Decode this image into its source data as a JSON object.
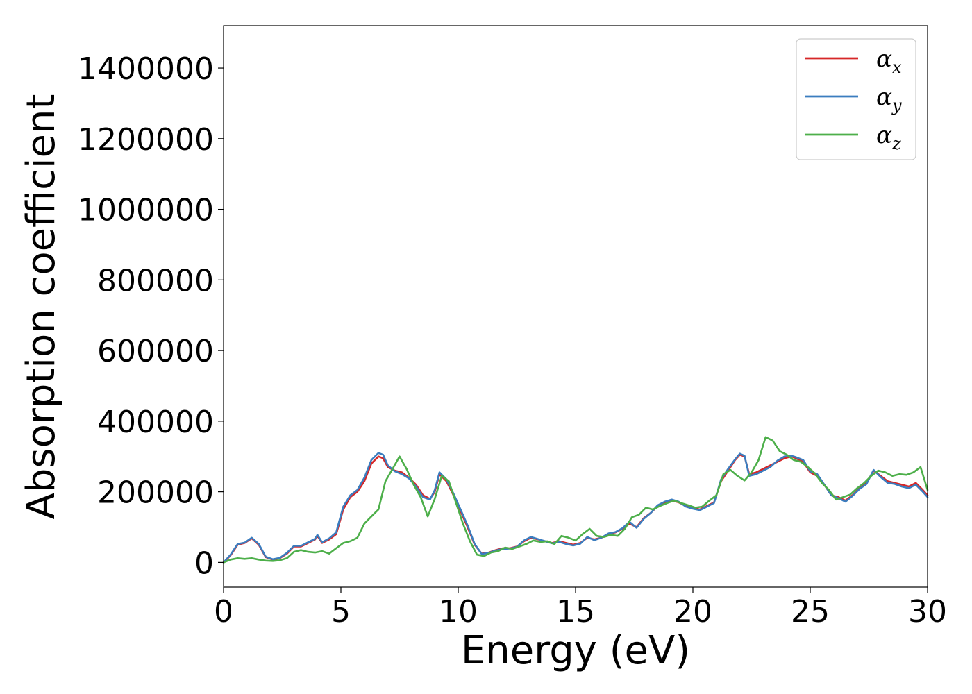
{
  "chart_data": {
    "type": "line",
    "title": "",
    "xlabel": "Energy (eV)",
    "ylabel": "Absorption coefficient",
    "xlim": [
      0,
      30
    ],
    "ylim": [
      -70000,
      1520000
    ],
    "xticks": [
      0,
      5,
      10,
      15,
      20,
      25,
      30
    ],
    "yticks": [
      0,
      200000,
      400000,
      600000,
      800000,
      1000000,
      1200000,
      1400000
    ],
    "xtick_labels": [
      "0",
      "5",
      "10",
      "15",
      "20",
      "25",
      "30"
    ],
    "ytick_labels": [
      "0",
      "200000",
      "400000",
      "600000",
      "800000",
      "1000000",
      "1200000",
      "1400000"
    ],
    "grid": false,
    "legend_position": "top-right",
    "series": [
      {
        "name": "α",
        "name_sub": "x",
        "color": "#d62728",
        "x": [
          0,
          0.3,
          0.6,
          0.9,
          1.2,
          1.5,
          1.8,
          2.1,
          2.4,
          2.7,
          3.0,
          3.3,
          3.6,
          3.9,
          4.0,
          4.2,
          4.5,
          4.8,
          5.1,
          5.4,
          5.7,
          6.0,
          6.3,
          6.6,
          6.8,
          7.0,
          7.3,
          7.6,
          7.9,
          8.2,
          8.5,
          8.8,
          9.0,
          9.2,
          9.5,
          9.8,
          10.1,
          10.4,
          10.7,
          11.0,
          11.3,
          11.6,
          11.9,
          12.2,
          12.5,
          12.8,
          13.1,
          13.4,
          13.7,
          14.0,
          14.3,
          14.6,
          14.9,
          15.2,
          15.5,
          15.8,
          16.1,
          16.4,
          16.7,
          17.0,
          17.3,
          17.6,
          17.9,
          18.2,
          18.5,
          18.8,
          19.1,
          19.4,
          19.7,
          20.0,
          20.3,
          20.6,
          20.9,
          21.2,
          21.5,
          21.8,
          22.0,
          22.2,
          22.4,
          22.7,
          23.0,
          23.3,
          23.6,
          23.9,
          24.2,
          24.4,
          24.7,
          25.0,
          25.3,
          25.6,
          25.9,
          26.2,
          26.5,
          26.8,
          27.1,
          27.4,
          27.7,
          28.0,
          28.3,
          28.6,
          28.9,
          29.2,
          29.5,
          29.8,
          30.0
        ],
        "y": [
          0,
          20000,
          50000,
          55000,
          68000,
          50000,
          15000,
          8000,
          12000,
          25000,
          45000,
          45000,
          55000,
          65000,
          75000,
          55000,
          65000,
          80000,
          150000,
          185000,
          200000,
          230000,
          280000,
          300000,
          295000,
          270000,
          260000,
          255000,
          240000,
          220000,
          190000,
          180000,
          200000,
          250000,
          230000,
          190000,
          145000,
          100000,
          50000,
          25000,
          28000,
          35000,
          40000,
          40000,
          45000,
          60000,
          70000,
          65000,
          60000,
          55000,
          60000,
          55000,
          50000,
          55000,
          70000,
          65000,
          70000,
          80000,
          85000,
          95000,
          110000,
          100000,
          125000,
          140000,
          160000,
          170000,
          175000,
          170000,
          160000,
          155000,
          150000,
          160000,
          170000,
          230000,
          260000,
          290000,
          305000,
          300000,
          250000,
          255000,
          265000,
          275000,
          285000,
          295000,
          300000,
          295000,
          285000,
          255000,
          245000,
          220000,
          190000,
          185000,
          175000,
          190000,
          210000,
          225000,
          260000,
          245000,
          230000,
          225000,
          220000,
          215000,
          225000,
          205000,
          190000
        ]
      },
      {
        "name": "α",
        "name_sub": "y",
        "color": "#3b7dbf",
        "x": [
          0,
          0.3,
          0.6,
          0.9,
          1.2,
          1.5,
          1.8,
          2.1,
          2.4,
          2.7,
          3.0,
          3.3,
          3.6,
          3.9,
          4.0,
          4.2,
          4.5,
          4.8,
          5.1,
          5.4,
          5.7,
          6.0,
          6.3,
          6.6,
          6.8,
          7.0,
          7.3,
          7.6,
          7.9,
          8.2,
          8.5,
          8.8,
          9.0,
          9.2,
          9.5,
          9.8,
          10.1,
          10.4,
          10.7,
          11.0,
          11.3,
          11.6,
          11.9,
          12.2,
          12.5,
          12.8,
          13.1,
          13.4,
          13.7,
          14.0,
          14.3,
          14.6,
          14.9,
          15.2,
          15.5,
          15.8,
          16.1,
          16.4,
          16.7,
          17.0,
          17.3,
          17.6,
          17.9,
          18.2,
          18.5,
          18.8,
          19.1,
          19.4,
          19.7,
          20.0,
          20.3,
          20.6,
          20.9,
          21.2,
          21.5,
          21.8,
          22.0,
          22.2,
          22.4,
          22.7,
          23.0,
          23.3,
          23.6,
          23.9,
          24.2,
          24.4,
          24.7,
          25.0,
          25.3,
          25.6,
          25.9,
          26.2,
          26.5,
          26.8,
          27.1,
          27.4,
          27.7,
          28.0,
          28.3,
          28.6,
          28.9,
          29.2,
          29.5,
          29.8,
          30.0
        ],
        "y": [
          0,
          22000,
          52000,
          56000,
          70000,
          52000,
          16000,
          9000,
          13000,
          27000,
          47000,
          47000,
          57000,
          67000,
          78000,
          57000,
          68000,
          85000,
          158000,
          190000,
          205000,
          240000,
          290000,
          310000,
          305000,
          275000,
          258000,
          250000,
          238000,
          215000,
          185000,
          178000,
          205000,
          255000,
          235000,
          195000,
          150000,
          105000,
          52000,
          24000,
          27000,
          34000,
          38000,
          39000,
          44000,
          62000,
          72000,
          66000,
          60000,
          54000,
          58000,
          52000,
          48000,
          53000,
          72000,
          63000,
          70000,
          82000,
          86000,
          97000,
          115000,
          98000,
          123000,
          140000,
          162000,
          172000,
          178000,
          172000,
          158000,
          152000,
          148000,
          158000,
          168000,
          235000,
          265000,
          292000,
          308000,
          302000,
          245000,
          250000,
          260000,
          270000,
          288000,
          300000,
          302000,
          298000,
          290000,
          258000,
          250000,
          220000,
          190000,
          182000,
          172000,
          188000,
          208000,
          222000,
          262000,
          242000,
          225000,
          222000,
          215000,
          210000,
          220000,
          200000,
          185000
        ]
      },
      {
        "name": "α",
        "name_sub": "z",
        "color": "#4daf4a",
        "x": [
          0,
          0.3,
          0.6,
          0.9,
          1.2,
          1.5,
          1.8,
          2.1,
          2.4,
          2.7,
          3.0,
          3.3,
          3.6,
          3.9,
          4.2,
          4.5,
          4.8,
          5.1,
          5.4,
          5.7,
          6.0,
          6.3,
          6.6,
          6.9,
          7.2,
          7.5,
          7.8,
          8.1,
          8.4,
          8.7,
          9.0,
          9.3,
          9.6,
          9.9,
          10.2,
          10.5,
          10.8,
          11.1,
          11.4,
          11.7,
          12.0,
          12.3,
          12.6,
          12.9,
          13.2,
          13.5,
          13.8,
          14.1,
          14.4,
          14.7,
          15.0,
          15.3,
          15.6,
          15.9,
          16.2,
          16.5,
          16.8,
          17.1,
          17.4,
          17.7,
          18.0,
          18.3,
          18.6,
          18.9,
          19.2,
          19.5,
          19.8,
          20.1,
          20.4,
          20.7,
          21.0,
          21.3,
          21.6,
          21.9,
          22.2,
          22.5,
          22.8,
          23.1,
          23.4,
          23.7,
          24.0,
          24.3,
          24.6,
          24.9,
          25.2,
          25.5,
          25.8,
          26.1,
          26.4,
          26.7,
          27.0,
          27.3,
          27.6,
          27.9,
          28.2,
          28.5,
          28.8,
          29.1,
          29.4,
          29.7,
          30.0
        ],
        "y": [
          0,
          8000,
          12000,
          10000,
          12000,
          8000,
          5000,
          4000,
          6000,
          12000,
          30000,
          35000,
          30000,
          28000,
          32000,
          25000,
          40000,
          55000,
          60000,
          70000,
          110000,
          130000,
          150000,
          230000,
          265000,
          300000,
          265000,
          220000,
          185000,
          130000,
          180000,
          245000,
          230000,
          170000,
          110000,
          60000,
          22000,
          18000,
          28000,
          32000,
          42000,
          38000,
          45000,
          52000,
          62000,
          58000,
          60000,
          52000,
          75000,
          70000,
          62000,
          80000,
          95000,
          75000,
          72000,
          78000,
          75000,
          95000,
          128000,
          135000,
          155000,
          150000,
          160000,
          168000,
          175000,
          168000,
          162000,
          155000,
          158000,
          175000,
          190000,
          250000,
          262000,
          245000,
          232000,
          255000,
          290000,
          355000,
          345000,
          315000,
          305000,
          290000,
          285000,
          270000,
          252000,
          225000,
          205000,
          178000,
          185000,
          192000,
          210000,
          225000,
          245000,
          260000,
          255000,
          245000,
          250000,
          248000,
          255000,
          270000,
          205000
        ]
      }
    ]
  }
}
